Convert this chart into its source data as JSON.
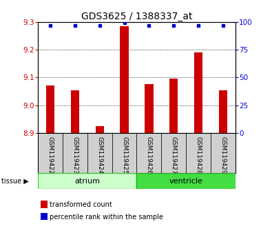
{
  "title": "GDS3625 / 1388337_at",
  "samples": [
    "GSM119422",
    "GSM119423",
    "GSM119424",
    "GSM119425",
    "GSM119426",
    "GSM119427",
    "GSM119428",
    "GSM119429"
  ],
  "transformed_counts": [
    9.07,
    9.055,
    8.925,
    9.285,
    9.075,
    9.095,
    9.19,
    9.055
  ],
  "percentile_ranks": [
    97,
    97,
    97,
    99,
    97,
    97,
    97,
    97
  ],
  "ylim_left": [
    8.9,
    9.3
  ],
  "ylim_right": [
    0,
    100
  ],
  "yticks_left": [
    8.9,
    9.0,
    9.1,
    9.2,
    9.3
  ],
  "yticks_right": [
    0,
    25,
    50,
    75,
    100
  ],
  "bar_color": "#cc0000",
  "dot_color": "#0000cc",
  "bar_bottom": 8.9,
  "atrium_color": "#ccffcc",
  "atrium_edge": "#33cc33",
  "ventricle_color": "#44dd44",
  "ventricle_edge": "#22aa22",
  "gray_box_color": "#d0d0d0",
  "background_color": "#ffffff",
  "tick_label_color_left": "#cc0000",
  "tick_label_color_right": "#0000cc",
  "bar_width": 0.35,
  "title_fontsize": 10,
  "tick_fontsize": 7.5,
  "sample_fontsize": 6.5,
  "tissue_fontsize": 8,
  "legend_fontsize": 7
}
